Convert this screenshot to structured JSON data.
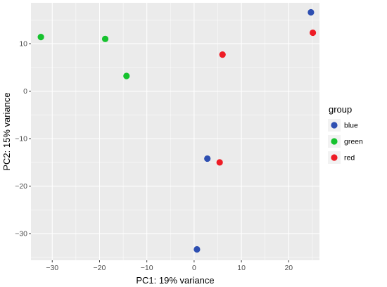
{
  "chart_data": {
    "type": "scatter",
    "title": "",
    "xlabel": "PC1: 19% variance",
    "ylabel": "PC2: 15% variance",
    "xlim": [
      -34.5,
      26.5
    ],
    "ylim": [
      -35.6,
      18.6
    ],
    "xticks": [
      -30,
      -20,
      -10,
      0,
      10,
      20
    ],
    "yticks": [
      -30,
      -20,
      -10,
      0,
      10
    ],
    "grid": true,
    "legend": {
      "title": "group",
      "placement": "right"
    },
    "series": [
      {
        "name": "blue",
        "color": "#2e4fb1",
        "points": [
          [
            24.7,
            16.6
          ],
          [
            2.8,
            -14.2
          ],
          [
            0.6,
            -33.3
          ]
        ]
      },
      {
        "name": "green",
        "color": "#16c22e",
        "points": [
          [
            -32.4,
            11.4
          ],
          [
            -18.8,
            11.0
          ],
          [
            -14.3,
            3.2
          ]
        ]
      },
      {
        "name": "red",
        "color": "#ee1c25",
        "points": [
          [
            25.1,
            12.3
          ],
          [
            6.0,
            7.7
          ],
          [
            5.4,
            -15.0
          ]
        ]
      }
    ]
  }
}
